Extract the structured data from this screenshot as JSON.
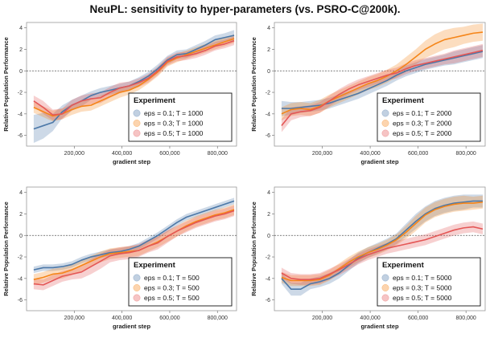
{
  "title": "NeuPL: sensitivity to hyper-parameters (vs. PSRO-C@200k).",
  "colors": {
    "blue": "#4c78a8",
    "orange": "#f58518",
    "red": "#e45756"
  },
  "chart_data": [
    {
      "type": "line",
      "xlabel": "gradient step",
      "ylabel": "Relative Population Performance",
      "xlim": [
        0,
        880000
      ],
      "ylim": [
        -7,
        4.5
      ],
      "xticks": [
        200000,
        400000,
        600000,
        800000
      ],
      "xtick_labels": [
        "200,000",
        "400,000",
        "600,000",
        "800,000"
      ],
      "yticks": [
        -6,
        -4,
        -2,
        0,
        2,
        4
      ],
      "legend_title": "Experiment",
      "legend_position": "bottom-right",
      "x": [
        30000,
        70000,
        110000,
        150000,
        190000,
        230000,
        270000,
        310000,
        350000,
        390000,
        430000,
        470000,
        510000,
        550000,
        590000,
        630000,
        670000,
        710000,
        750000,
        790000,
        830000,
        870000
      ],
      "series": [
        {
          "name": "eps = 0.1; T = 1000",
          "color": "blue",
          "values": [
            -5.4,
            -5.1,
            -4.8,
            -3.8,
            -3.2,
            -2.8,
            -2.3,
            -2.0,
            -1.8,
            -1.6,
            -1.4,
            -1.0,
            -0.5,
            0.2,
            1.0,
            1.5,
            1.6,
            2.0,
            2.4,
            2.9,
            3.1,
            3.3
          ],
          "band": [
            1.3,
            1.2,
            0.8,
            0.6,
            0.5,
            0.5,
            0.4,
            0.4,
            0.4,
            0.4,
            0.4,
            0.4,
            0.4,
            0.4,
            0.4,
            0.4,
            0.4,
            0.4,
            0.4,
            0.4,
            0.4,
            0.5
          ]
        },
        {
          "name": "eps = 0.3; T = 1000",
          "color": "orange",
          "values": [
            -3.4,
            -3.8,
            -4.2,
            -4.0,
            -3.6,
            -3.3,
            -3.2,
            -2.8,
            -2.4,
            -2.0,
            -1.8,
            -1.4,
            -0.8,
            -0.1,
            0.8,
            1.2,
            1.5,
            1.8,
            2.1,
            2.4,
            2.7,
            3.0
          ],
          "band": [
            0.5,
            0.5,
            0.5,
            0.5,
            0.5,
            0.5,
            0.5,
            0.5,
            0.5,
            0.5,
            0.4,
            0.4,
            0.4,
            0.4,
            0.4,
            0.4,
            0.4,
            0.4,
            0.4,
            0.4,
            0.4,
            0.4
          ]
        },
        {
          "name": "eps = 0.5; T = 1000",
          "color": "red",
          "values": [
            -2.8,
            -3.4,
            -4.1,
            -4.0,
            -3.2,
            -2.8,
            -2.6,
            -2.5,
            -2.0,
            -1.6,
            -1.4,
            -1.1,
            -0.7,
            0.0,
            0.9,
            1.3,
            1.4,
            1.6,
            1.9,
            2.3,
            2.5,
            2.8
          ],
          "band": [
            0.5,
            0.6,
            0.5,
            0.5,
            0.5,
            0.5,
            0.5,
            0.5,
            0.5,
            0.5,
            0.4,
            0.4,
            0.4,
            0.4,
            0.4,
            0.4,
            0.4,
            0.4,
            0.4,
            0.4,
            0.4,
            0.4
          ]
        }
      ]
    },
    {
      "type": "line",
      "xlabel": "gradient step",
      "ylabel": "Relative Population Performance",
      "xlim": [
        0,
        880000
      ],
      "ylim": [
        -7,
        4.5
      ],
      "xticks": [
        200000,
        400000,
        600000,
        800000
      ],
      "xtick_labels": [
        "200,000",
        "400,000",
        "600,000",
        "800,000"
      ],
      "yticks": [
        -6,
        -4,
        -2,
        0,
        2,
        4
      ],
      "legend_title": "Experiment",
      "legend_position": "bottom-right",
      "x": [
        30000,
        70000,
        110000,
        150000,
        190000,
        230000,
        270000,
        310000,
        350000,
        390000,
        430000,
        470000,
        510000,
        550000,
        590000,
        630000,
        670000,
        710000,
        750000,
        790000,
        830000,
        870000
      ],
      "series": [
        {
          "name": "eps = 0.1; T = 2000",
          "color": "blue",
          "values": [
            -3.5,
            -3.5,
            -3.4,
            -3.3,
            -3.2,
            -3.0,
            -2.7,
            -2.4,
            -2.1,
            -1.7,
            -1.3,
            -0.9,
            -0.4,
            0.0,
            0.3,
            0.6,
            0.8,
            1.0,
            1.2,
            1.4,
            1.6,
            1.8
          ],
          "band": [
            0.7,
            0.6,
            0.5,
            0.5,
            0.5,
            0.5,
            0.5,
            0.5,
            0.5,
            0.5,
            0.5,
            0.5,
            0.5,
            0.5,
            0.5,
            0.5,
            0.5,
            0.5,
            0.6,
            0.6,
            0.6,
            0.6
          ]
        },
        {
          "name": "eps = 0.3; T = 2000",
          "color": "orange",
          "values": [
            -4.0,
            -3.6,
            -3.5,
            -3.6,
            -3.3,
            -2.8,
            -2.4,
            -2.0,
            -1.6,
            -1.2,
            -0.9,
            -0.5,
            0.0,
            0.6,
            1.3,
            2.0,
            2.5,
            2.9,
            3.1,
            3.3,
            3.5,
            3.6
          ],
          "band": [
            0.6,
            0.6,
            0.6,
            0.6,
            0.6,
            0.6,
            0.6,
            0.6,
            0.6,
            0.6,
            0.6,
            0.6,
            0.6,
            0.7,
            0.7,
            0.8,
            0.9,
            0.9,
            0.9,
            0.8,
            0.8,
            0.8
          ]
        },
        {
          "name": "eps = 0.5; T = 2000",
          "color": "red",
          "values": [
            -5.1,
            -4.0,
            -3.8,
            -3.7,
            -3.4,
            -2.8,
            -2.2,
            -1.7,
            -1.3,
            -1.0,
            -0.7,
            -0.4,
            -0.2,
            0.2,
            0.5,
            0.7,
            0.9,
            1.1,
            1.3,
            1.5,
            1.7,
            1.9
          ],
          "band": [
            0.6,
            0.6,
            0.5,
            0.5,
            0.5,
            0.5,
            0.5,
            0.5,
            0.5,
            0.5,
            0.5,
            0.5,
            0.5,
            0.5,
            0.5,
            0.5,
            0.5,
            0.5,
            0.6,
            0.6,
            0.6,
            0.6
          ]
        }
      ]
    },
    {
      "type": "line",
      "xlabel": "gradient step",
      "ylabel": "Relative Population Performance",
      "xlim": [
        0,
        880000
      ],
      "ylim": [
        -7,
        4.5
      ],
      "xticks": [
        200000,
        400000,
        600000,
        800000
      ],
      "xtick_labels": [
        "200,000",
        "400,000",
        "600,000",
        "800,000"
      ],
      "yticks": [
        -6,
        -4,
        -2,
        0,
        2,
        4
      ],
      "legend_title": "Experiment",
      "legend_position": "bottom-right",
      "x": [
        30000,
        70000,
        110000,
        150000,
        190000,
        230000,
        270000,
        310000,
        350000,
        390000,
        430000,
        470000,
        510000,
        550000,
        590000,
        630000,
        670000,
        710000,
        750000,
        790000,
        830000,
        870000
      ],
      "series": [
        {
          "name": "eps = 0.1; T = 500",
          "color": "blue",
          "values": [
            -3.2,
            -3.0,
            -3.0,
            -2.9,
            -2.7,
            -2.3,
            -2.0,
            -1.8,
            -1.6,
            -1.5,
            -1.3,
            -1.0,
            -0.5,
            0.0,
            0.6,
            1.2,
            1.7,
            2.0,
            2.3,
            2.6,
            2.9,
            3.2
          ],
          "band": [
            0.3,
            0.3,
            0.3,
            0.3,
            0.3,
            0.3,
            0.3,
            0.3,
            0.3,
            0.3,
            0.3,
            0.3,
            0.3,
            0.3,
            0.3,
            0.3,
            0.3,
            0.3,
            0.3,
            0.3,
            0.3,
            0.3
          ]
        },
        {
          "name": "eps = 0.3; T = 500",
          "color": "orange",
          "values": [
            -4.1,
            -3.9,
            -3.6,
            -3.5,
            -3.2,
            -2.8,
            -2.4,
            -2.0,
            -1.7,
            -1.6,
            -1.5,
            -1.4,
            -1.0,
            -0.6,
            -0.1,
            0.4,
            0.9,
            1.3,
            1.6,
            1.9,
            2.1,
            2.4
          ],
          "band": [
            0.5,
            0.5,
            0.5,
            0.5,
            0.5,
            0.5,
            0.5,
            0.5,
            0.5,
            0.5,
            0.5,
            0.5,
            0.5,
            0.5,
            0.5,
            0.5,
            0.5,
            0.5,
            0.5,
            0.5,
            0.5,
            0.5
          ]
        },
        {
          "name": "eps = 0.5; T = 500",
          "color": "red",
          "values": [
            -4.5,
            -4.6,
            -4.2,
            -3.8,
            -3.6,
            -3.4,
            -2.9,
            -2.4,
            -1.9,
            -1.7,
            -1.6,
            -1.4,
            -1.0,
            -0.7,
            -0.1,
            0.4,
            0.8,
            1.2,
            1.5,
            1.8,
            2.0,
            2.3
          ],
          "band": [
            0.5,
            0.5,
            0.5,
            0.5,
            0.5,
            0.6,
            0.7,
            0.7,
            0.6,
            0.6,
            0.6,
            0.6,
            0.6,
            0.6,
            0.6,
            0.5,
            0.5,
            0.5,
            0.5,
            0.5,
            0.5,
            0.5
          ]
        }
      ]
    },
    {
      "type": "line",
      "xlabel": "gradient step",
      "ylabel": "Relative Population Performance",
      "xlim": [
        0,
        880000
      ],
      "ylim": [
        -7,
        4.5
      ],
      "xticks": [
        200000,
        400000,
        600000,
        800000
      ],
      "xtick_labels": [
        "200,000",
        "400,000",
        "600,000",
        "800,000"
      ],
      "yticks": [
        -6,
        -4,
        -2,
        0,
        2,
        4
      ],
      "legend_title": "Experiment",
      "legend_position": "bottom-right",
      "x": [
        30000,
        70000,
        110000,
        150000,
        190000,
        230000,
        270000,
        310000,
        350000,
        390000,
        430000,
        470000,
        510000,
        550000,
        590000,
        630000,
        670000,
        710000,
        750000,
        790000,
        830000,
        870000
      ],
      "series": [
        {
          "name": "eps = 0.1; T = 5000",
          "color": "blue",
          "values": [
            -4.0,
            -5.0,
            -5.0,
            -4.5,
            -4.3,
            -4.0,
            -3.5,
            -2.8,
            -2.1,
            -1.6,
            -1.2,
            -0.8,
            -0.3,
            0.5,
            1.3,
            2.0,
            2.5,
            2.8,
            3.0,
            3.1,
            3.2,
            3.2
          ],
          "band": [
            0.5,
            0.6,
            0.6,
            0.5,
            0.5,
            0.5,
            0.5,
            0.5,
            0.5,
            0.5,
            0.5,
            0.5,
            0.5,
            0.6,
            0.7,
            0.7,
            0.7,
            0.7,
            0.7,
            0.7,
            0.6,
            0.6
          ]
        },
        {
          "name": "eps = 0.3; T = 5000",
          "color": "orange",
          "values": [
            -3.9,
            -4.2,
            -4.2,
            -4.2,
            -4.1,
            -3.7,
            -3.1,
            -2.5,
            -2.0,
            -1.6,
            -1.3,
            -0.9,
            -0.4,
            0.3,
            1.1,
            1.9,
            2.4,
            2.7,
            2.9,
            3.0,
            3.0,
            3.1
          ],
          "band": [
            0.5,
            0.5,
            0.5,
            0.5,
            0.5,
            0.5,
            0.5,
            0.5,
            0.5,
            0.5,
            0.5,
            0.5,
            0.5,
            0.6,
            0.7,
            0.7,
            0.7,
            0.7,
            0.7,
            0.7,
            0.6,
            0.6
          ]
        },
        {
          "name": "eps = 0.5; T = 5000",
          "color": "red",
          "values": [
            -3.5,
            -4.0,
            -4.1,
            -4.1,
            -4.0,
            -3.6,
            -3.2,
            -2.7,
            -2.2,
            -1.8,
            -1.5,
            -1.2,
            -1.0,
            -0.8,
            -0.6,
            -0.4,
            -0.1,
            0.2,
            0.5,
            0.7,
            0.8,
            0.6
          ],
          "band": [
            0.5,
            0.5,
            0.5,
            0.5,
            0.5,
            0.5,
            0.5,
            0.5,
            0.5,
            0.5,
            0.5,
            0.5,
            0.5,
            0.5,
            0.5,
            0.5,
            0.5,
            0.5,
            0.5,
            0.5,
            0.5,
            0.5
          ]
        }
      ]
    }
  ]
}
